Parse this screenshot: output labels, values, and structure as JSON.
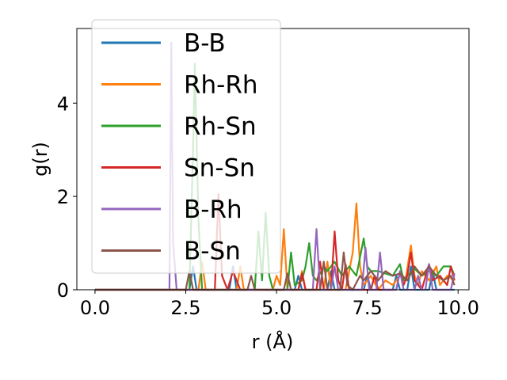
{
  "chart_data": {
    "type": "line",
    "xlabel": "r (Å)",
    "ylabel": "g(r)",
    "xlim": [
      -0.5,
      10.3
    ],
    "ylim": [
      0,
      5.6
    ],
    "xticks": [
      0.0,
      2.5,
      5.0,
      7.5,
      10.0
    ],
    "xtick_labels": [
      "0.0",
      "2.5",
      "5.0",
      "7.5",
      "10.0"
    ],
    "yticks": [
      0,
      2,
      4
    ],
    "ytick_labels": [
      "0",
      "2",
      "4"
    ],
    "grid": false,
    "legend_position": "top-left",
    "series": [
      {
        "name": "B-B",
        "color": "#1f77b4",
        "points": [
          [
            0,
            0
          ],
          [
            2.6,
            0
          ],
          [
            2.7,
            0.5
          ],
          [
            2.8,
            0
          ],
          [
            3.7,
            0
          ],
          [
            3.8,
            0.5
          ],
          [
            3.9,
            0
          ],
          [
            5.5,
            0
          ],
          [
            5.6,
            0.3
          ],
          [
            5.7,
            0
          ],
          [
            6.4,
            0
          ],
          [
            6.5,
            0.4
          ],
          [
            6.6,
            0
          ],
          [
            7.4,
            0
          ],
          [
            7.5,
            0.3
          ],
          [
            7.6,
            0
          ],
          [
            8.2,
            0
          ],
          [
            8.3,
            0.3
          ],
          [
            8.4,
            0
          ],
          [
            8.6,
            0
          ],
          [
            8.7,
            0.5
          ],
          [
            8.8,
            0
          ],
          [
            9.2,
            0
          ],
          [
            9.3,
            0.4
          ],
          [
            9.4,
            0
          ],
          [
            9.9,
            0
          ]
        ]
      },
      {
        "name": "Rh-Rh",
        "color": "#ff7f0e",
        "points": [
          [
            0,
            0
          ],
          [
            2.85,
            0
          ],
          [
            2.95,
            0.6
          ],
          [
            3.05,
            0
          ],
          [
            3.9,
            0
          ],
          [
            4.0,
            0.5
          ],
          [
            4.1,
            0
          ],
          [
            4.9,
            0
          ],
          [
            5.0,
            0.3
          ],
          [
            5.1,
            0.1
          ],
          [
            5.2,
            1.3
          ],
          [
            5.3,
            0
          ],
          [
            5.6,
            0
          ],
          [
            5.7,
            0.4
          ],
          [
            5.8,
            0
          ],
          [
            6.3,
            0
          ],
          [
            6.4,
            0.6
          ],
          [
            6.5,
            0
          ],
          [
            6.9,
            0
          ],
          [
            7.0,
            0.4
          ],
          [
            7.1,
            0.8
          ],
          [
            7.2,
            1.85
          ],
          [
            7.3,
            0.5
          ],
          [
            7.4,
            0.1
          ],
          [
            7.6,
            0.3
          ],
          [
            7.8,
            0
          ],
          [
            8.0,
            0.2
          ],
          [
            8.2,
            0.1
          ],
          [
            8.4,
            0.3
          ],
          [
            8.55,
            0.2
          ],
          [
            8.7,
            0.95
          ],
          [
            8.8,
            0.3
          ],
          [
            8.9,
            0.1
          ],
          [
            9.0,
            0.4
          ],
          [
            9.2,
            0.2
          ],
          [
            9.4,
            0.5
          ],
          [
            9.5,
            0.1
          ],
          [
            9.7,
            0.3
          ],
          [
            9.9,
            0.2
          ]
        ]
      },
      {
        "name": "Rh-Sn",
        "color": "#2ca02c",
        "points": [
          [
            0,
            0
          ],
          [
            2.6,
            0
          ],
          [
            2.7,
            3.0
          ],
          [
            2.75,
            4.85
          ],
          [
            2.85,
            1.5
          ],
          [
            2.95,
            0
          ],
          [
            4.4,
            0
          ],
          [
            4.5,
            1.25
          ],
          [
            4.6,
            0.2
          ],
          [
            4.7,
            1.65
          ],
          [
            4.8,
            0.3
          ],
          [
            4.9,
            0
          ],
          [
            5.3,
            0
          ],
          [
            5.4,
            0.8
          ],
          [
            5.5,
            0.1
          ],
          [
            5.7,
            0.2
          ],
          [
            5.8,
            0.5
          ],
          [
            5.9,
            1.0
          ],
          [
            6.0,
            0.3
          ],
          [
            6.1,
            0.2
          ],
          [
            6.3,
            0.5
          ],
          [
            6.4,
            0.4
          ],
          [
            6.6,
            0.6
          ],
          [
            6.8,
            0.3
          ],
          [
            7.0,
            0.5
          ],
          [
            7.2,
            0.3
          ],
          [
            7.4,
            1.1
          ],
          [
            7.5,
            0.5
          ],
          [
            7.6,
            0.4
          ],
          [
            7.8,
            0.4
          ],
          [
            8.0,
            0.35
          ],
          [
            8.2,
            0.3
          ],
          [
            8.4,
            0.55
          ],
          [
            8.5,
            0.2
          ],
          [
            8.6,
            0.3
          ],
          [
            8.8,
            0.45
          ],
          [
            9.0,
            0.3
          ],
          [
            9.2,
            0.4
          ],
          [
            9.4,
            0.3
          ],
          [
            9.6,
            0.5
          ],
          [
            9.8,
            0.5
          ],
          [
            9.9,
            0.3
          ]
        ]
      },
      {
        "name": "Sn-Sn",
        "color": "#d62728",
        "points": [
          [
            0,
            0
          ],
          [
            3.3,
            0
          ],
          [
            3.4,
            2.05
          ],
          [
            3.5,
            0.3
          ],
          [
            3.65,
            0
          ],
          [
            3.8,
            0.4
          ],
          [
            3.9,
            0.2
          ],
          [
            4.0,
            0
          ],
          [
            5.6,
            0
          ],
          [
            5.7,
            0.35
          ],
          [
            5.8,
            0
          ],
          [
            6.1,
            0
          ],
          [
            6.2,
            0.6
          ],
          [
            6.3,
            0
          ],
          [
            6.5,
            0
          ],
          [
            6.6,
            1.25
          ],
          [
            6.7,
            0.2
          ],
          [
            6.8,
            0
          ],
          [
            6.9,
            0.55
          ],
          [
            7.0,
            0
          ],
          [
            7.6,
            0
          ],
          [
            7.7,
            0.3
          ],
          [
            7.8,
            0
          ],
          [
            8.3,
            0
          ],
          [
            8.4,
            0.4
          ],
          [
            8.5,
            0.1
          ],
          [
            8.6,
            0.3
          ],
          [
            8.7,
            0.8
          ],
          [
            8.8,
            0.2
          ],
          [
            9.0,
            0
          ],
          [
            9.2,
            0.55
          ],
          [
            9.3,
            0.2
          ],
          [
            9.5,
            0.3
          ],
          [
            9.7,
            0.1
          ],
          [
            9.8,
            0.5
          ],
          [
            9.9,
            0.2
          ]
        ]
      },
      {
        "name": "B-Rh",
        "color": "#9467bd",
        "points": [
          [
            0,
            0
          ],
          [
            2.05,
            0
          ],
          [
            2.1,
            5.3
          ],
          [
            2.15,
            1.0
          ],
          [
            2.25,
            0
          ],
          [
            6.0,
            0
          ],
          [
            6.1,
            1.3
          ],
          [
            6.2,
            0
          ],
          [
            6.5,
            0
          ],
          [
            6.6,
            0.5
          ],
          [
            6.7,
            0
          ],
          [
            7.35,
            0
          ],
          [
            7.45,
            0.9
          ],
          [
            7.55,
            0
          ],
          [
            7.75,
            0
          ],
          [
            7.85,
            0.8
          ],
          [
            7.95,
            0
          ],
          [
            8.3,
            0
          ],
          [
            8.4,
            0.4
          ],
          [
            8.5,
            0
          ],
          [
            8.8,
            0
          ],
          [
            8.9,
            0.3
          ],
          [
            9.0,
            0
          ],
          [
            9.1,
            0
          ],
          [
            9.2,
            0.55
          ],
          [
            9.3,
            0
          ],
          [
            9.8,
            0
          ],
          [
            9.9,
            0.35
          ]
        ]
      },
      {
        "name": "B-Sn",
        "color": "#8c564b",
        "points": [
          [
            0,
            0
          ],
          [
            2.5,
            0
          ],
          [
            2.6,
            0.4
          ],
          [
            2.7,
            0
          ],
          [
            4.2,
            0
          ],
          [
            4.3,
            0.3
          ],
          [
            4.4,
            0
          ],
          [
            5.2,
            0
          ],
          [
            5.3,
            0.35
          ],
          [
            5.4,
            0
          ],
          [
            6.2,
            0
          ],
          [
            6.3,
            0.6
          ],
          [
            6.4,
            0
          ],
          [
            6.75,
            0
          ],
          [
            6.85,
            0.8
          ],
          [
            6.95,
            0.1
          ],
          [
            7.1,
            0
          ],
          [
            7.3,
            0.3
          ],
          [
            7.4,
            0.2
          ],
          [
            7.6,
            0.4
          ],
          [
            7.8,
            0.2
          ],
          [
            8.0,
            0.4
          ],
          [
            8.2,
            0.3
          ],
          [
            8.4,
            0.35
          ],
          [
            8.6,
            0.2
          ],
          [
            8.8,
            0.5
          ],
          [
            9.0,
            0.3
          ],
          [
            9.2,
            0.5
          ],
          [
            9.4,
            0.3
          ],
          [
            9.6,
            0.2
          ],
          [
            9.8,
            0.3
          ],
          [
            9.9,
            0.1
          ]
        ]
      }
    ]
  }
}
